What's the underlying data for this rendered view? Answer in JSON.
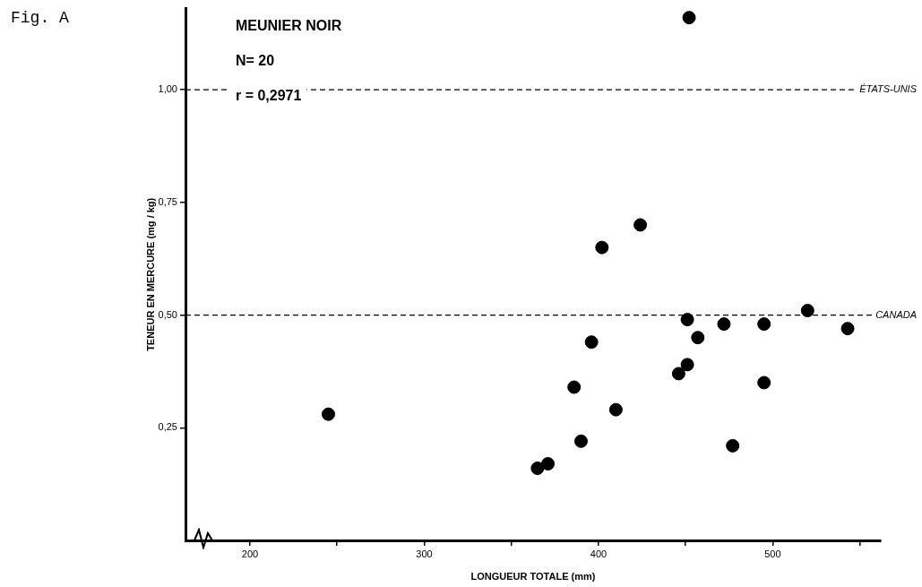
{
  "chart_data": {
    "type": "scatter",
    "title": "Fig. A",
    "xlabel": "LONGUEUR TOTALE (mm)",
    "ylabel": "TENEUR EN MERCURE (mg / kg)",
    "annotations": [
      "MEUNIER NOIR",
      "N= 20",
      "r = 0,2971"
    ],
    "x": [
      245,
      365,
      371,
      386,
      390,
      396,
      402,
      410,
      424,
      446,
      451,
      451,
      452,
      457,
      472,
      477,
      495,
      495,
      520,
      543
    ],
    "series": [
      {
        "color": "#000000",
        "values": [
          0.28,
          0.16,
          0.17,
          0.34,
          0.22,
          0.44,
          0.65,
          0.29,
          0.7,
          0.37,
          0.39,
          0.49,
          1.16,
          0.45,
          0.48,
          0.21,
          0.48,
          0.35,
          0.51,
          0.47
        ]
      }
    ],
    "xlim": [
      163,
      562
    ],
    "ylim": [
      0,
      1.18
    ],
    "xticks": [
      200,
      {
        "value": 250,
        "label": null
      },
      300,
      {
        "value": 350,
        "label": null
      },
      400,
      {
        "value": 450,
        "label": null
      },
      500,
      {
        "value": 550,
        "label": null
      }
    ],
    "yticks": [
      {
        "value": 0.25,
        "label": "0,25"
      },
      {
        "value": 0.5,
        "label": "0,50"
      },
      {
        "value": 0.75,
        "label": "0,75"
      },
      {
        "value": 1.0,
        "label": "1,00"
      }
    ],
    "ref_lines": [
      {
        "axis": "y",
        "value": 1.0,
        "label": "ÉTATS-UNIS",
        "line_style": "dashed"
      },
      {
        "axis": "y",
        "value": 0.5,
        "label": "CANADA",
        "line_style": "dashed"
      }
    ],
    "marker": "circle",
    "grid": false,
    "legend": false
  }
}
